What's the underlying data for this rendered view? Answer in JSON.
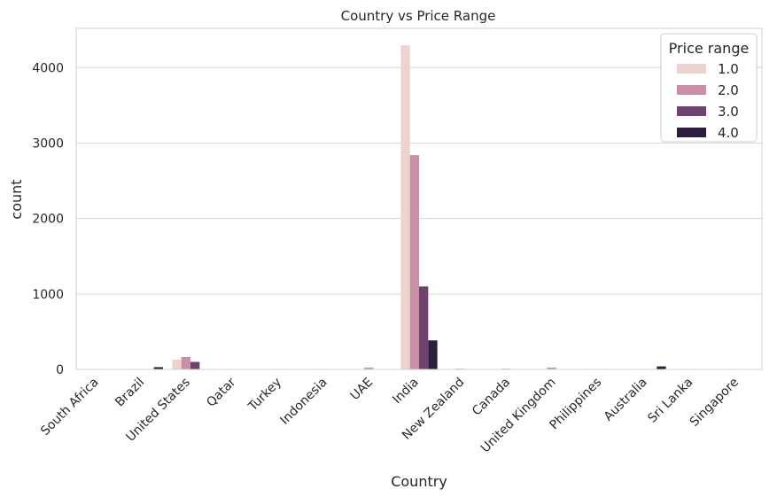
{
  "chart_data": {
    "type": "bar",
    "title": "Country vs Price Range",
    "xlabel": "Country",
    "ylabel": "count",
    "ylim": [
      0,
      4520
    ],
    "yticks": [
      0,
      1000,
      2000,
      3000,
      4000
    ],
    "grid": "horizontal",
    "legend_title": "Price range",
    "legend_position": "top-right",
    "categories": [
      "South Africa",
      "Brazil",
      "United States",
      "Qatar",
      "Turkey",
      "Indonesia",
      "UAE",
      "India",
      "New Zealand",
      "Canada",
      "United Kingdom",
      "Philippines",
      "Australia",
      "Sri Lanka",
      "Singapore"
    ],
    "series": [
      {
        "name": "1.0",
        "color": "#ecd3d0",
        "values": [
          0,
          0,
          130,
          0,
          0,
          0,
          0,
          4295,
          0,
          0,
          0,
          0,
          0,
          0,
          0
        ]
      },
      {
        "name": "2.0",
        "color": "#c98fa6",
        "values": [
          0,
          5,
          165,
          0,
          0,
          0,
          25,
          2840,
          10,
          10,
          25,
          0,
          0,
          0,
          5
        ]
      },
      {
        "name": "3.0",
        "color": "#6e4370",
        "values": [
          0,
          0,
          100,
          0,
          0,
          0,
          0,
          1100,
          0,
          0,
          0,
          0,
          0,
          0,
          0
        ]
      },
      {
        "name": "4.0",
        "color": "#2d1e3e",
        "values": [
          0,
          30,
          0,
          0,
          0,
          0,
          0,
          385,
          0,
          0,
          0,
          0,
          40,
          0,
          0
        ]
      }
    ]
  }
}
